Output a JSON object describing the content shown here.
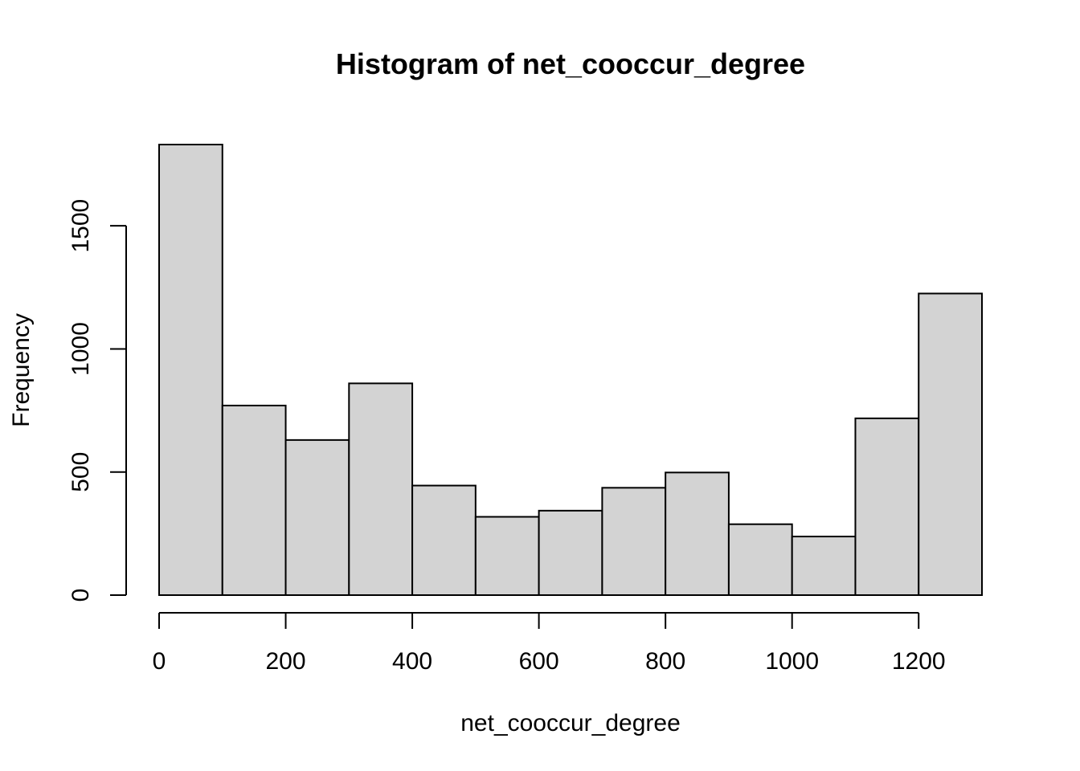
{
  "chart_data": {
    "type": "bar",
    "title": "Histogram of net_cooccur_degree",
    "xlabel": "net_cooccur_degree",
    "ylabel": "Frequency",
    "bin_edges": [
      0,
      100,
      200,
      300,
      400,
      500,
      600,
      700,
      800,
      900,
      1000,
      1100,
      1200,
      1300
    ],
    "values": [
      1830,
      770,
      630,
      860,
      445,
      318,
      343,
      436,
      498,
      288,
      238,
      718,
      1225
    ],
    "xlim": [
      0,
      1300
    ],
    "ylim": [
      0,
      1830
    ],
    "x_ticks": [
      0,
      200,
      400,
      600,
      800,
      1000,
      1200
    ],
    "y_ticks": [
      0,
      500,
      1000,
      1500
    ],
    "x_tick_labels": [
      "0",
      "200",
      "400",
      "600",
      "800",
      "1000",
      "1200"
    ],
    "y_tick_labels": [
      "0",
      "500",
      "1000",
      "1500"
    ],
    "grid": false,
    "colors": {
      "bar_fill": "#d3d3d3",
      "bar_stroke": "#000000",
      "axis": "#000000",
      "background": "#ffffff"
    }
  }
}
